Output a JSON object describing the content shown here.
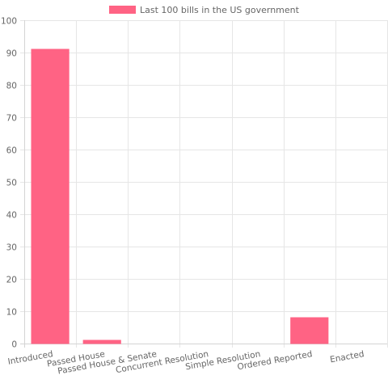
{
  "chart_data": {
    "type": "bar",
    "categories": [
      "Introduced",
      "Passed House",
      "Passed House & Senate",
      "Concurrent Resolution",
      "Simple Resolution",
      "Ordered Reported",
      "Enacted"
    ],
    "series": [
      {
        "name": "Last 100 bills in the US government",
        "values": [
          91,
          1,
          0,
          0,
          0,
          8,
          0
        ],
        "color": "#ff6384"
      }
    ],
    "yticks": [
      "0",
      "10",
      "20",
      "30",
      "40",
      "50",
      "60",
      "70",
      "80",
      "90",
      "100"
    ],
    "ylim": [
      0,
      100
    ],
    "grid": true,
    "legend": "top-center"
  }
}
